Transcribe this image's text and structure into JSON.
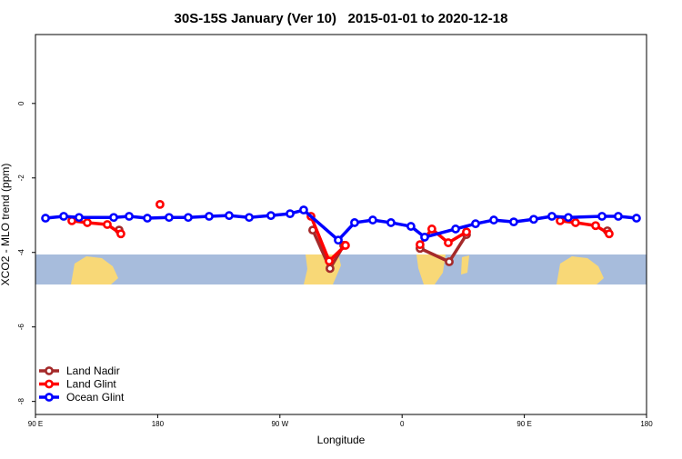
{
  "chart_data": {
    "type": "line",
    "title": "30S-15S January (Ver 10)   2015-01-01 to 2020-12-18",
    "x_label": "Longitude",
    "y_label": "XCO2 - MLO trend (ppm)",
    "xlim": [
      90,
      540
    ],
    "ylim": [
      -8.35,
      1.85
    ],
    "xticks": [
      {
        "value": 90,
        "label": "90 E"
      },
      {
        "value": 180,
        "label": "180"
      },
      {
        "value": 270,
        "label": "90 W"
      },
      {
        "value": 360,
        "label": "0"
      },
      {
        "value": 450,
        "label": "90 E"
      },
      {
        "value": 540,
        "label": "180"
      }
    ],
    "yticks": [
      0,
      -2,
      -4,
      -6,
      -8
    ],
    "legend": "bottom-left",
    "series": [
      {
        "name": "Land Nadir",
        "color": "#a52a2a",
        "x": [
          151.6,
          null,
          294.2,
          306.9,
          317.0,
          null,
          373.2,
          394.7,
          407.4,
          null,
          511.2
        ],
        "values": [
          -3.4,
          null,
          -3.4,
          -4.43,
          -3.81,
          null,
          -3.89,
          -4.25,
          -3.52,
          null,
          -3.42
        ]
      },
      {
        "name": "Land Glint",
        "color": "#ff0000",
        "x": [
          116.8,
          128.2,
          142.9,
          152.9,
          null,
          181.7,
          null,
          292.9,
          306.3,
          318.3,
          null,
          373.2,
          381.9,
          394.0,
          407.4,
          null,
          476.4,
          487.7,
          502.5,
          512.5
        ],
        "values": [
          -3.15,
          -3.2,
          -3.25,
          -3.5,
          null,
          -2.71,
          null,
          -3.03,
          -4.23,
          -3.81,
          null,
          -3.79,
          -3.37,
          -3.74,
          -3.45,
          null,
          -3.15,
          -3.2,
          -3.28,
          -3.5
        ]
      },
      {
        "name": "Ocean Glint",
        "color": "#0000ff",
        "x": [
          97.4,
          110.8,
          122.1,
          147.6,
          159.0,
          172.4,
          188.4,
          202.5,
          217.9,
          232.6,
          247.4,
          263.4,
          277.5,
          287.5,
          313.0,
          325.0,
          338.4,
          351.8,
          366.5,
          376.6,
          399.4,
          414.1,
          427.5,
          442.2,
          456.9,
          470.3,
          482.4,
          507.2,
          519.2,
          532.6
        ],
        "values": [
          -3.08,
          -3.03,
          -3.06,
          -3.06,
          -3.03,
          -3.08,
          -3.06,
          -3.06,
          -3.03,
          -3.01,
          -3.06,
          -3.01,
          -2.96,
          -2.86,
          -3.67,
          -3.2,
          -3.13,
          -3.2,
          -3.3,
          -3.59,
          -3.37,
          -3.23,
          -3.13,
          -3.18,
          -3.11,
          -3.03,
          -3.06,
          -3.03,
          -3.03,
          -3.08
        ]
      }
    ]
  }
}
